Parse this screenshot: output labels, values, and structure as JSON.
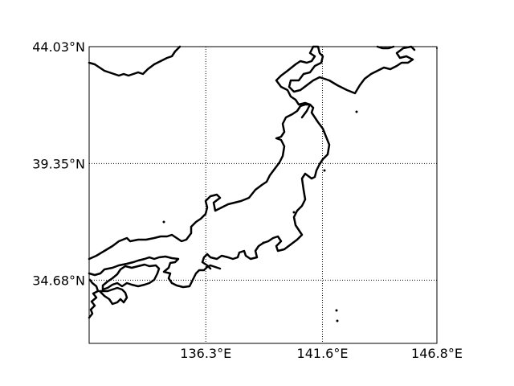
{
  "map": {
    "projection": "cylindrical",
    "lon_range": [
      131.0,
      146.8
    ],
    "lat_range": [
      32.15,
      44.03
    ],
    "meridians": [
      {
        "value": 136.3,
        "label": "136.3°E"
      },
      {
        "value": 141.6,
        "label": "141.6°E"
      },
      {
        "value": 146.8,
        "label": "146.8°E"
      }
    ],
    "parallels": [
      {
        "value": 44.03,
        "label": "44.03°N"
      },
      {
        "value": 39.35,
        "label": "39.35°N"
      },
      {
        "value": 34.68,
        "label": "34.68°N"
      }
    ],
    "grid": true,
    "grid_style": "dotted",
    "coastline_color": "#000000",
    "background_color": "#ffffff"
  }
}
